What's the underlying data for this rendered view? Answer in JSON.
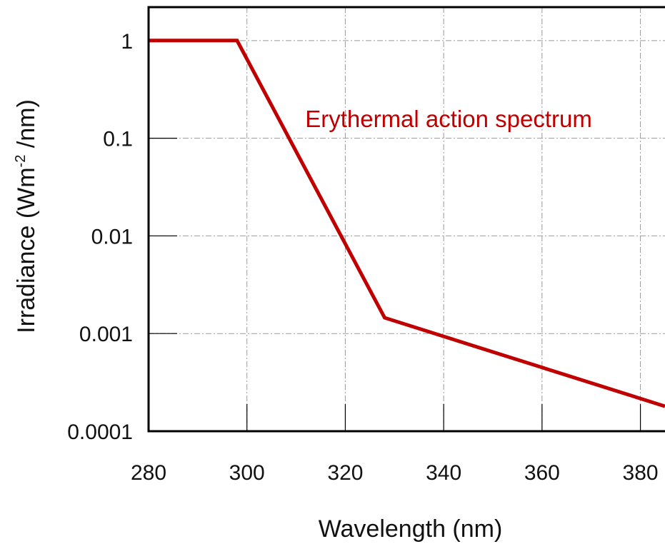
{
  "chart_data": {
    "type": "line",
    "title": "",
    "xlabel": "Wavelength (nm)",
    "ylabel": {
      "before": "Irradiance (Wm",
      "superscript": "-2",
      "after": " /nm)"
    },
    "x_scale": "linear",
    "y_scale": "log",
    "xlim": [
      280,
      385
    ],
    "ylim": [
      0.0001,
      2.2
    ],
    "x_ticks": [
      280,
      300,
      320,
      340,
      360,
      380
    ],
    "x_tick_labels": [
      "280",
      "300",
      "320",
      "340",
      "360",
      "380"
    ],
    "y_ticks": [
      0.0001,
      0.001,
      0.01,
      0.1,
      1
    ],
    "y_tick_labels": [
      "0.0001",
      "0.001",
      "0.01",
      "0.1",
      "1"
    ],
    "grid": true,
    "series": [
      {
        "color": "#c00000",
        "points": [
          {
            "x": 280,
            "y": 1.0
          },
          {
            "x": 298,
            "y": 1.0
          },
          {
            "x": 328,
            "y": 0.00145
          },
          {
            "x": 385,
            "y": 0.00018
          }
        ]
      }
    ],
    "annotations": [
      {
        "text": "Erythermal action spectrum",
        "x": 341,
        "y": 0.13,
        "color": "#c00000"
      }
    ]
  }
}
